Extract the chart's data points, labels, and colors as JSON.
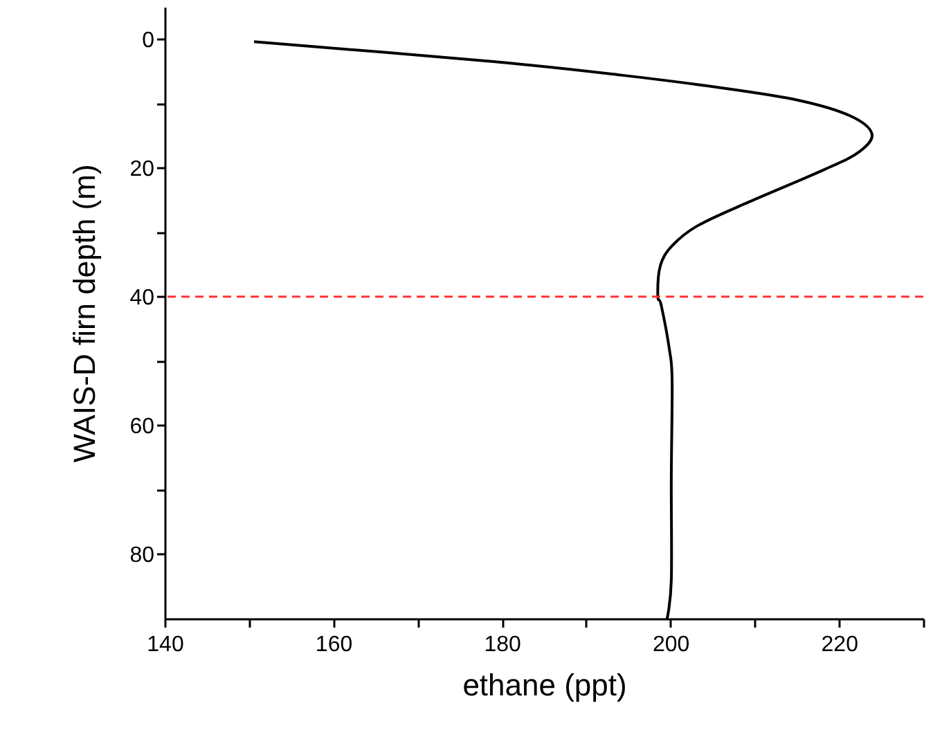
{
  "chart_data": {
    "type": "line",
    "xlabel": "ethane (ppt)",
    "ylabel": "WAIS-D firn depth (m)",
    "series": [
      {
        "color": "#000000",
        "x": [
          150.6,
          179.0,
          194.2,
          206.2,
          215.2,
          221.3,
          223.9,
          222.4,
          218.2,
          209.3,
          203.2,
          200.2,
          198.8,
          198.5,
          198.9,
          199.9,
          200.2,
          200.1,
          200.1,
          199.6
        ],
        "values": [
          0.4,
          3.5,
          5.6,
          7.6,
          9.5,
          11.9,
          14.7,
          17.5,
          20.3,
          25.3,
          29,
          32.1,
          35.2,
          40,
          41.3,
          48.4,
          53.2,
          68.2,
          84.1,
          90
        ]
      }
    ],
    "xlim": [
      140,
      230
    ],
    "ylim": [
      90,
      -5
    ],
    "xticks": [
      140,
      {
        "value": 150,
        "label": null
      },
      160,
      {
        "value": 170,
        "label": null
      },
      180,
      {
        "value": 190,
        "label": null
      },
      200,
      {
        "value": 210,
        "label": null
      },
      220,
      {
        "value": 230,
        "label": null
      }
    ],
    "yticks": [
      0,
      {
        "value": 10,
        "label": null
      },
      20,
      {
        "value": 30,
        "label": null
      },
      40,
      {
        "value": 50,
        "label": null
      },
      60,
      {
        "value": 70,
        "label": null
      },
      80
    ],
    "ref_lines": [
      {
        "axis": "y",
        "value": 40,
        "color": "#ff3333",
        "line_style": "dashed"
      }
    ],
    "grid": false,
    "line_style": "solid",
    "marker": "none"
  }
}
